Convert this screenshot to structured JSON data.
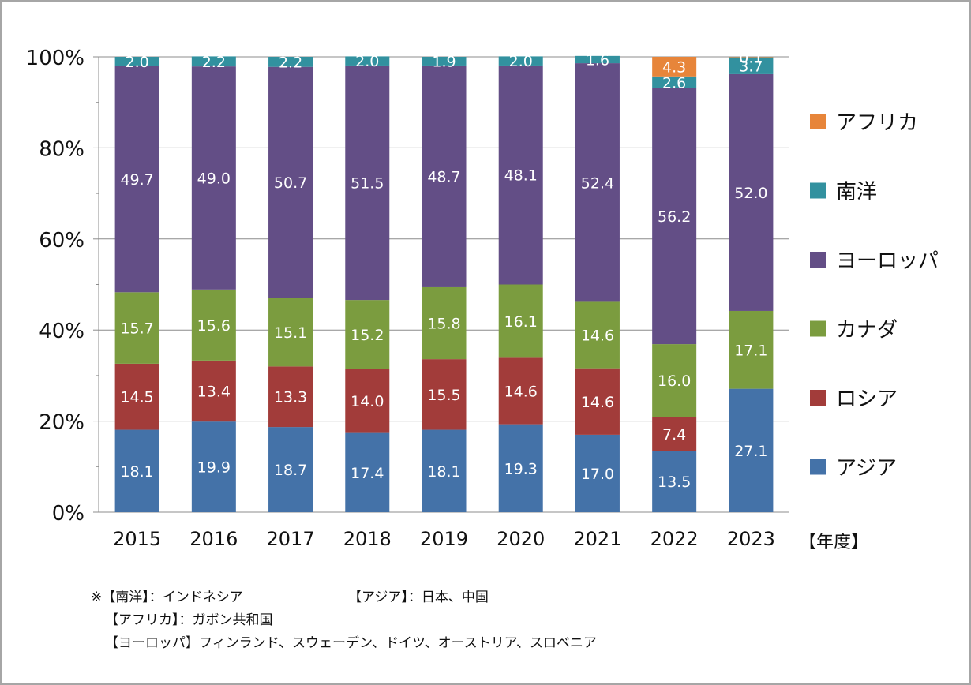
{
  "chart_data": {
    "type": "bar",
    "stacked": true,
    "categories": [
      "2015",
      "2016",
      "2017",
      "2018",
      "2019",
      "2020",
      "2021",
      "2022",
      "2023"
    ],
    "series": [
      {
        "name": "アジア",
        "color": "#4472a8",
        "values": [
          18.1,
          19.9,
          18.7,
          17.4,
          18.1,
          19.3,
          17.0,
          13.5,
          27.1
        ]
      },
      {
        "name": "ロシア",
        "color": "#a23c3a",
        "values": [
          14.5,
          13.4,
          13.3,
          14.0,
          15.5,
          14.6,
          14.6,
          7.4,
          0
        ]
      },
      {
        "name": "カナダ",
        "color": "#7b9c3f",
        "values": [
          15.7,
          15.6,
          15.1,
          15.2,
          15.8,
          16.1,
          14.6,
          16.0,
          17.1
        ]
      },
      {
        "name": "ヨーロッパ",
        "color": "#634e86",
        "values": [
          49.7,
          49.0,
          50.7,
          51.5,
          48.7,
          48.1,
          52.4,
          56.2,
          52.0
        ]
      },
      {
        "name": "南洋",
        "color": "#32919f",
        "values": [
          2.0,
          2.2,
          2.2,
          2.0,
          1.9,
          2.0,
          1.6,
          2.6,
          3.7
        ]
      },
      {
        "name": "アフリカ",
        "color": "#e7853a",
        "values": [
          0,
          0,
          0,
          0,
          0,
          0,
          0,
          4.3,
          0.1
        ]
      }
    ],
    "yticks": [
      "0%",
      "20%",
      "40%",
      "60%",
      "80%",
      "100%"
    ],
    "ylim": [
      0,
      100
    ],
    "xunit": "【年度】",
    "grid": true,
    "legend": "right"
  },
  "notes": {
    "line1_a": "※【南洋】：インドネシア",
    "line1_b": "【アジア】：日本、中国",
    "line2": "【アフリカ】：ガボン共和国",
    "line3": "【ヨーロッパ】フィンランド、スウェーデン、ドイツ、オーストリア、スロベニア"
  }
}
